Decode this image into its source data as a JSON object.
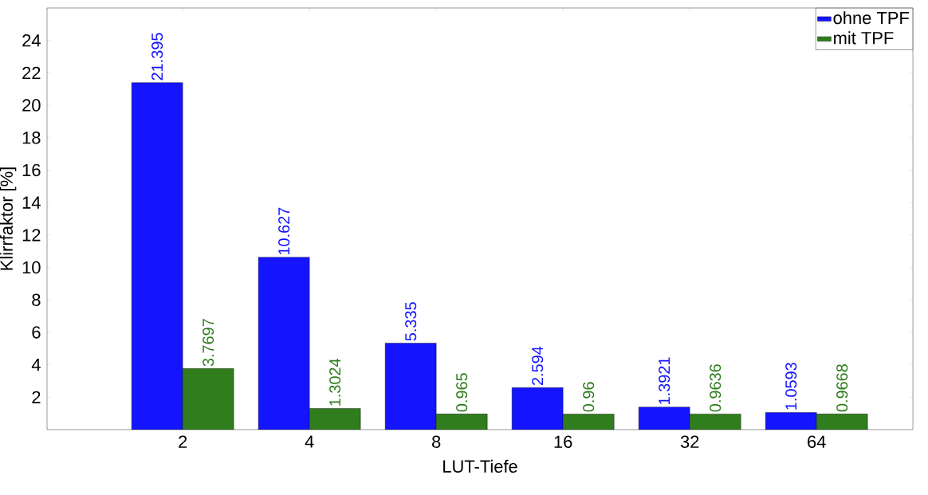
{
  "chart_data": {
    "type": "bar",
    "xlabel": "LUT-Tiefe",
    "ylabel": "Klirrfaktor [%]",
    "categories": [
      "2",
      "4",
      "8",
      "16",
      "32",
      "64"
    ],
    "series": [
      {
        "name": "ohne TPF",
        "color": "#1414ff",
        "values": [
          21.395,
          10.627,
          5.335,
          2.594,
          1.3921,
          1.0593
        ]
      },
      {
        "name": "mit TPF",
        "color": "#2f7d1c",
        "values": [
          3.7697,
          1.3024,
          0.965,
          0.96,
          0.9636,
          0.9668
        ]
      }
    ],
    "ylim": [
      0,
      26
    ],
    "yticks": [
      2,
      4,
      6,
      8,
      10,
      12,
      14,
      16,
      18,
      20,
      22,
      24
    ],
    "data_labels": true,
    "legend": "top right",
    "grid": false
  }
}
